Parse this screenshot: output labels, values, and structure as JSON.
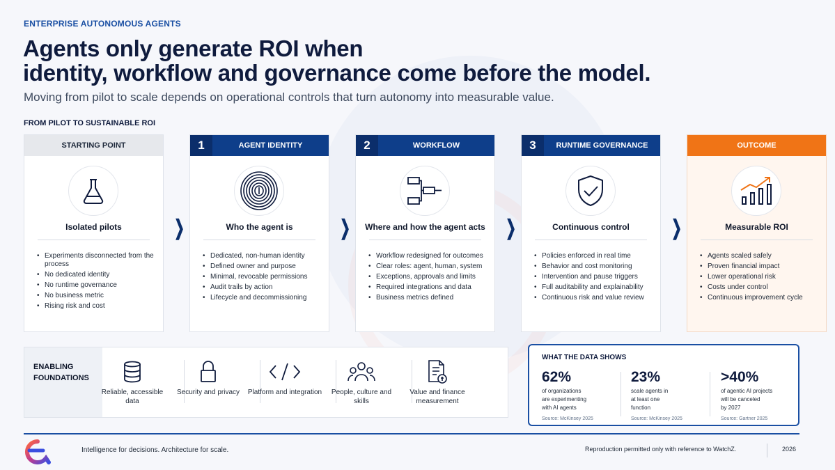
{
  "header": {
    "eyebrow": "ENTERPRISE AUTONOMOUS AGENTS",
    "title": "Agents only generate ROI when\nidentity, workflow and governance come before the model.",
    "subtitle": "Moving from pilot to scale depends on operational controls that turn autonomy into measurable value."
  },
  "section_label": "FROM PILOT TO SUSTAINABLE ROI",
  "stages": [
    {
      "number": "",
      "header": "STARTING POINT",
      "icon": "flask-icon",
      "title": "Isolated pilots",
      "bullets": [
        "Experiments disconnected from the process",
        "No dedicated identity",
        "No runtime governance",
        "No business metric",
        "Rising risk and cost"
      ]
    },
    {
      "number": "1",
      "header": "AGENT IDENTITY",
      "icon": "fingerprint-icon",
      "title": "Who the agent is",
      "bullets": [
        "Dedicated, non-human identity",
        "Defined owner and purpose",
        "Minimal, revocable permissions",
        "Audit trails by action",
        "Lifecycle and decommissioning"
      ]
    },
    {
      "number": "2",
      "header": "WORKFLOW",
      "icon": "workflow-icon",
      "title": "Where and how the agent acts",
      "bullets": [
        "Workflow redesigned for outcomes",
        "Clear roles: agent, human, system",
        "Exceptions, approvals and limits",
        "Required integrations and data",
        "Business metrics defined"
      ]
    },
    {
      "number": "3",
      "header": "RUNTIME GOVERNANCE",
      "icon": "shield-check-icon",
      "title": "Continuous control",
      "bullets": [
        "Policies enforced in real time",
        "Behavior and cost monitoring",
        "Intervention and pause triggers",
        "Full auditability and explainability",
        "Continuous risk and value review"
      ]
    },
    {
      "number": "",
      "header": "OUTCOME",
      "icon": "growth-chart-icon",
      "title": "Measurable ROI",
      "bullets": [
        "Agents scaled safely",
        "Proven financial impact",
        "Lower operational risk",
        "Costs under control",
        "Continuous improvement cycle"
      ]
    }
  ],
  "foundations": {
    "label": "ENABLING FOUNDATIONS",
    "items": [
      {
        "icon": "database-icon",
        "label": "Reliable, accessible data"
      },
      {
        "icon": "lock-icon",
        "label": "Security and privacy"
      },
      {
        "icon": "code-icon",
        "label": "Platform and integration"
      },
      {
        "icon": "people-icon",
        "label": "People, culture and skills"
      },
      {
        "icon": "document-money-icon",
        "label": "Value and finance measurement"
      }
    ]
  },
  "data_panel": {
    "title": "WHAT THE DATA SHOWS",
    "stats": [
      {
        "value": "62%",
        "lines": [
          "of organizations",
          "are experimenting",
          "with AI agents"
        ],
        "source": "Source: McKinsey 2025"
      },
      {
        "value": "23%",
        "lines": [
          "scale agents in",
          "at least one",
          "function"
        ],
        "source": "Source: McKinsey 2025"
      },
      {
        "value": ">40%",
        "lines": [
          "of agentic AI projects",
          "will be canceled",
          "by 2027"
        ],
        "source": "Source: Gartner 2025"
      }
    ]
  },
  "footer": {
    "tagline": "Intelligence for decisions. Architecture for scale.",
    "reproduction": "Reproduction permitted only with reference to WatchZ.",
    "year": "2026"
  },
  "colors": {
    "navy": "#0e3e8a",
    "dark_navy": "#0b2e6b",
    "orange": "#f07416",
    "accent_blue": "#1a4fa3"
  }
}
